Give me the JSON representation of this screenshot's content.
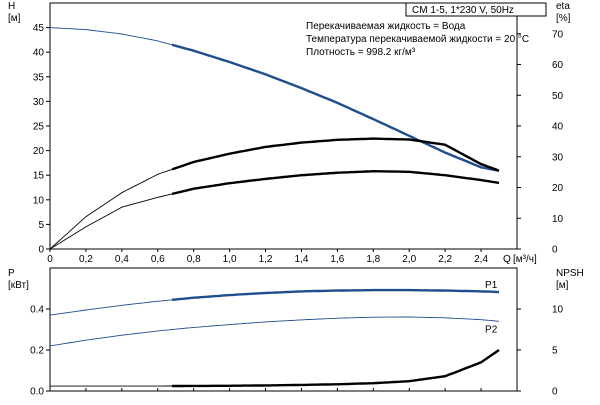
{
  "title": "CM 1-5, 1*230 V, 50Hz",
  "info": {
    "line1": "Перекачиваемая жидкость = Вода",
    "line2": "Температура перекачиваемой жидкости = 20 °C",
    "line3": "Плотность = 998.2 кг/м³"
  },
  "axes": {
    "h_label": "H",
    "h_unit": "[м]",
    "eta_label": "eta",
    "eta_unit": "[%]",
    "q_label": "Q",
    "q_unit": "[м³/ч]",
    "p_label": "P",
    "p_unit": "[кВт]",
    "npsh_label": "NPSH",
    "npsh_unit": "[м]"
  },
  "chart_data": [
    {
      "type": "line",
      "name": "upper",
      "x": [
        0,
        0.2,
        0.4,
        0.6,
        0.8,
        1.0,
        1.2,
        1.4,
        1.6,
        1.8,
        2.0,
        2.2,
        2.4,
        2.5
      ],
      "xlim": [
        0,
        2.6
      ],
      "x_ticks": [
        "0",
        "0,2",
        "0,4",
        "0,6",
        "0,8",
        "1,0",
        "1,2",
        "1,4",
        "1,6",
        "1,8",
        "2,0",
        "2,2",
        "2,4"
      ],
      "ylim_left": [
        0,
        50
      ],
      "y_ticks_left": [
        "0",
        "5",
        "10",
        "15",
        "20",
        "25",
        "30",
        "35",
        "40",
        "45"
      ],
      "ylim_right": [
        0,
        80
      ],
      "y_ticks_right": [
        "0",
        "10",
        "20",
        "30",
        "40",
        "50",
        "60",
        "70"
      ],
      "series": [
        {
          "axis": "left",
          "values": [
            45,
            44.6,
            43.7,
            42.3,
            40.3,
            38.0,
            35.5,
            32.7,
            29.7,
            26.4,
            23.0,
            19.6,
            16.6,
            15.9
          ],
          "color": "#1f4e8c",
          "op_from": 0.68,
          "op_to": 2.5
        },
        {
          "axis": "right",
          "values": [
            0,
            10.5,
            18.3,
            24.3,
            28.3,
            31.0,
            33.2,
            34.6,
            35.5,
            35.9,
            35.6,
            33.9,
            27.6,
            25.5
          ],
          "color": "#000000",
          "op_from": 0.68,
          "op_to": 2.5
        },
        {
          "axis": "right",
          "values": [
            0,
            7.2,
            13.6,
            16.8,
            19.6,
            21.4,
            22.8,
            24.0,
            24.8,
            25.3,
            25.1,
            24.0,
            22.4,
            21.5
          ],
          "color": "#000000",
          "op_from": 0.68,
          "op_to": 2.5
        }
      ]
    },
    {
      "type": "line",
      "name": "lower",
      "x": [
        0,
        0.2,
        0.4,
        0.6,
        0.8,
        1.0,
        1.2,
        1.4,
        1.6,
        1.8,
        2.0,
        2.2,
        2.4,
        2.5
      ],
      "xlim": [
        0,
        2.6
      ],
      "ylim_left": [
        0,
        0.6
      ],
      "y_ticks_left": [
        "0.0",
        "0.2",
        "0.4"
      ],
      "ylim_right": [
        0,
        15
      ],
      "y_ticks_right": [
        "0",
        "5",
        "10"
      ],
      "series": [
        {
          "name": "P1",
          "axis": "left",
          "values": [
            0.37,
            0.395,
            0.418,
            0.438,
            0.455,
            0.468,
            0.478,
            0.486,
            0.49,
            0.492,
            0.492,
            0.49,
            0.486,
            0.483
          ],
          "color": "#1f4e8c",
          "op_from": 0.68,
          "op_to": 2.5
        },
        {
          "name": "P2",
          "axis": "left",
          "values": [
            0.22,
            0.248,
            0.272,
            0.293,
            0.31,
            0.324,
            0.337,
            0.347,
            0.355,
            0.36,
            0.361,
            0.357,
            0.348,
            0.34
          ],
          "color": "#1f4e8c",
          "op_from": 2.6,
          "op_to": 2.6
        },
        {
          "axis": "right",
          "values": [
            0.6,
            0.6,
            0.6,
            0.6,
            0.62,
            0.64,
            0.68,
            0.74,
            0.82,
            0.95,
            1.2,
            1.8,
            3.5,
            5.0
          ],
          "color": "#000000",
          "op_from": 0.68,
          "op_to": 2.5
        }
      ]
    }
  ]
}
